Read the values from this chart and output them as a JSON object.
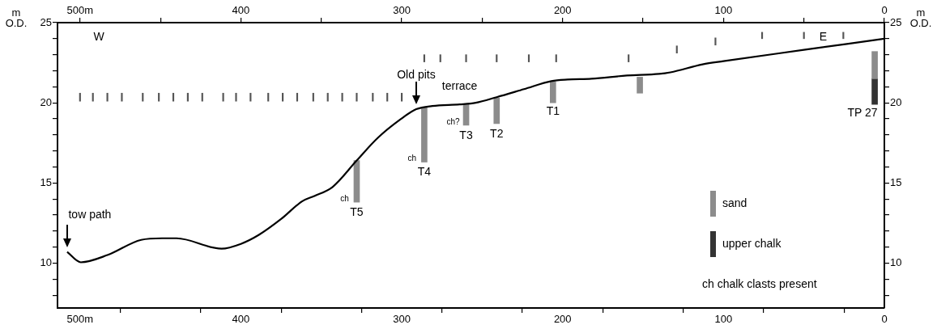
{
  "chart_data": {
    "type": "line",
    "xlim": [
      514,
      0
    ],
    "xticks": [
      {
        "value": 500,
        "label": "500m"
      },
      {
        "value": 450,
        "label": null
      },
      400,
      {
        "value": 350,
        "label": null
      },
      300,
      {
        "value": 250,
        "label": null
      },
      200,
      {
        "value": 150,
        "label": null
      },
      100,
      {
        "value": 50,
        "label": null
      },
      0
    ],
    "x2lim": [
      514,
      0
    ],
    "x2ticks": [
      {
        "value": 500,
        "label": "500m"
      },
      {
        "value": 450,
        "label": null
      },
      400,
      {
        "value": 350,
        "label": null
      },
      300,
      {
        "value": 250,
        "label": null
      },
      200,
      {
        "value": 150,
        "label": null
      },
      100,
      {
        "value": 50,
        "label": null
      },
      0
    ],
    "ylim": [
      7.2,
      25
    ],
    "yticks": [
      {
        "value": 8,
        "label": null
      },
      {
        "value": 9,
        "label": null
      },
      10,
      {
        "value": 11,
        "label": null
      },
      {
        "value": 12,
        "label": null
      },
      {
        "value": 13,
        "label": null
      },
      {
        "value": 14,
        "label": null
      },
      15,
      {
        "value": 16,
        "label": null
      },
      {
        "value": 17,
        "label": null
      },
      {
        "value": 18,
        "label": null
      },
      {
        "value": 19,
        "label": null
      },
      20,
      {
        "value": 21,
        "label": null
      },
      {
        "value": 22,
        "label": null
      },
      {
        "value": 23,
        "label": null
      },
      {
        "value": 24,
        "label": null
      },
      25
    ],
    "y2lim": [
      7.2,
      25
    ],
    "y2ticks": [
      {
        "value": 8,
        "label": null
      },
      {
        "value": 9,
        "label": null
      },
      10,
      {
        "value": 11,
        "label": null
      },
      {
        "value": 12,
        "label": null
      },
      {
        "value": 13,
        "label": null
      },
      {
        "value": 14,
        "label": null
      },
      15,
      {
        "value": 16,
        "label": null
      },
      {
        "value": 17,
        "label": null
      },
      {
        "value": 18,
        "label": null
      },
      {
        "value": 19,
        "label": null
      },
      20,
      {
        "value": 21,
        "label": null
      },
      {
        "value": 22,
        "label": null
      },
      {
        "value": 23,
        "label": null
      },
      {
        "value": 24,
        "label": null
      },
      25
    ],
    "ylabel": "m O.D.",
    "y2label": "m O.D.",
    "marker": "none",
    "legend": "bottom right",
    "series": [
      {
        "color": "#000000",
        "x": [
          508,
          499.5,
          483,
          462,
          449,
          440,
          412,
          400,
          389,
          375,
          362,
          354,
          343,
          328,
          315,
          301,
          291,
          281,
          264,
          254,
          241,
          224,
          207,
          197,
          182,
          160,
          140,
          133,
          113,
          100,
          50,
          0
        ],
        "values": [
          10.7,
          10.05,
          10.5,
          11.45,
          11.55,
          11.55,
          10.9,
          11.2,
          11.75,
          12.75,
          13.85,
          14.2,
          14.75,
          16.4,
          17.8,
          18.95,
          19.6,
          19.8,
          19.9,
          20.0,
          20.35,
          20.85,
          21.35,
          21.45,
          21.5,
          21.7,
          21.8,
          21.9,
          22.4,
          22.6,
          23.3,
          24.0
        ]
      },
      {
        "type": "bar",
        "name": "sand",
        "color": "#8c8c8c",
        "x": [
          328,
          286,
          260,
          241,
          206,
          152,
          6
        ],
        "base": [
          13.8,
          16.3,
          18.6,
          18.7,
          20.0,
          20.6,
          21.5
        ],
        "values": [
          2.6,
          3.4,
          1.3,
          1.6,
          1.3,
          1.0,
          1.7
        ]
      },
      {
        "type": "bar",
        "name": "upper chalk",
        "color": "#333333",
        "x": [
          6
        ],
        "base": [
          19.9
        ],
        "values": [
          1.6
        ]
      },
      {
        "type": "bar",
        "color": "#555555",
        "x": [
          500,
          492,
          483,
          474,
          461,
          451,
          442,
          433,
          424,
          411,
          403,
          394,
          383,
          374,
          365,
          355,
          346,
          337,
          328,
          318,
          309,
          300,
          286,
          276,
          260,
          241,
          221,
          204,
          159,
          129,
          105,
          76,
          50,
          25.5
        ],
        "base": [
          20.1,
          20.1,
          20.1,
          20.1,
          20.1,
          20.1,
          20.1,
          20.1,
          20.1,
          20.1,
          20.1,
          20.1,
          20.1,
          20.1,
          20.1,
          20.1,
          20.1,
          20.1,
          20.1,
          20.1,
          20.1,
          20.1,
          22.55,
          22.55,
          22.55,
          22.55,
          22.55,
          22.55,
          22.55,
          23.1,
          23.6,
          24.0,
          24.0,
          24.0
        ],
        "values": [
          0.5,
          0.5,
          0.5,
          0.5,
          0.5,
          0.5,
          0.5,
          0.5,
          0.5,
          0.5,
          0.5,
          0.5,
          0.5,
          0.5,
          0.5,
          0.5,
          0.5,
          0.5,
          0.5,
          0.5,
          0.5,
          0.5,
          0.45,
          0.45,
          0.45,
          0.45,
          0.45,
          0.45,
          0.45,
          0.45,
          0.45,
          0.4,
          0.4,
          0.4
        ]
      }
    ],
    "annotations": [
      "W",
      "E",
      {
        "text": "tow path",
        "x": 508,
        "y": 10.7
      },
      {
        "text": "Old pits",
        "x": 291,
        "y": 19.6
      },
      {
        "text": "terrace",
        "x": 264,
        "y": 19.9
      },
      {
        "text": "T1",
        "x": 206,
        "y": 20.0
      },
      {
        "text": "T2",
        "x": 241,
        "y": 18.7
      },
      {
        "text": "T3",
        "x": 260,
        "y": 18.6
      },
      {
        "text": "T4",
        "x": 286,
        "y": 16.3
      },
      {
        "text": "T5",
        "x": 328,
        "y": 13.8
      },
      {
        "text": "TP 27",
        "x": 6,
        "y": 19.9
      },
      {
        "text": "ch",
        "x": 328,
        "y": 13.8
      },
      {
        "text": "ch",
        "x": 286,
        "y": 16.3
      },
      {
        "text": "ch?",
        "x": 260,
        "y": 18.6
      },
      "ch chalk clasts present"
    ]
  }
}
